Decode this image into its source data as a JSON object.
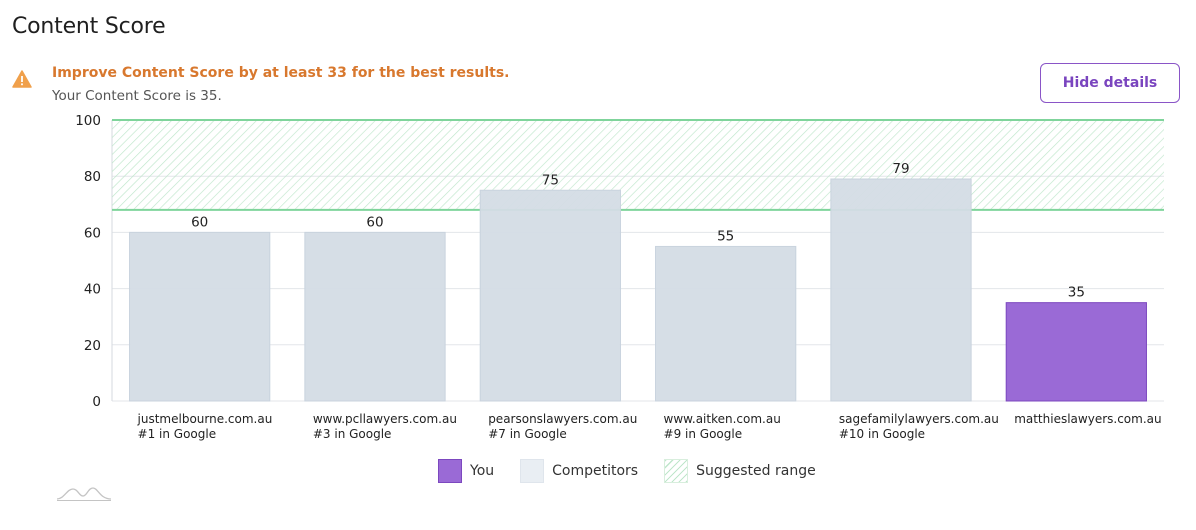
{
  "header": {
    "title": "Content Score"
  },
  "alert": {
    "icon": "warning-icon",
    "headline": "Improve Content Score by at least 33 for the best results.",
    "subtext": "Your Content Score is 35."
  },
  "actions": {
    "hide_details_label": "Hide details"
  },
  "legend": {
    "you": "You",
    "competitors": "Competitors",
    "suggested_range": "Suggested range"
  },
  "colors": {
    "you_bar": "#9a6ad6",
    "you_border": "#7c48bf",
    "competitor_bar": "#d4dce5",
    "competitor_border": "#c9d3de",
    "range_line": "#7fd49b",
    "range_hatch": "#bfe6cb",
    "alert_text": "#d8782e",
    "alert_icon": "#f0a04b",
    "button_accent": "#8a55c7"
  },
  "chart_data": {
    "type": "bar",
    "categories": [
      "justmelbourne.com.au",
      "www.pcllawyers.com.au",
      "pearsonslawyers.com.au",
      "www.aitken.com.au",
      "sagefamilylawyers.com.au",
      "matthieslawyers.com.au"
    ],
    "subcategories": [
      "#1 in Google",
      "#3 in Google",
      "#7 in Google",
      "#9 in Google",
      "#10 in Google",
      ""
    ],
    "values": [
      60,
      60,
      75,
      55,
      79,
      35
    ],
    "value_labels": [
      "60",
      "60",
      "75",
      "55",
      "79",
      "35"
    ],
    "groups": [
      "competitor",
      "competitor",
      "competitor",
      "competitor",
      "competitor",
      "you"
    ],
    "ylim": [
      0,
      100
    ],
    "yticks": [
      0,
      20,
      40,
      60,
      80,
      100
    ],
    "ytick_labels": [
      "0",
      "20",
      "40",
      "60",
      "80",
      "100"
    ],
    "suggested_range": [
      68,
      100
    ],
    "grid": true,
    "legend_position": "bottom"
  }
}
